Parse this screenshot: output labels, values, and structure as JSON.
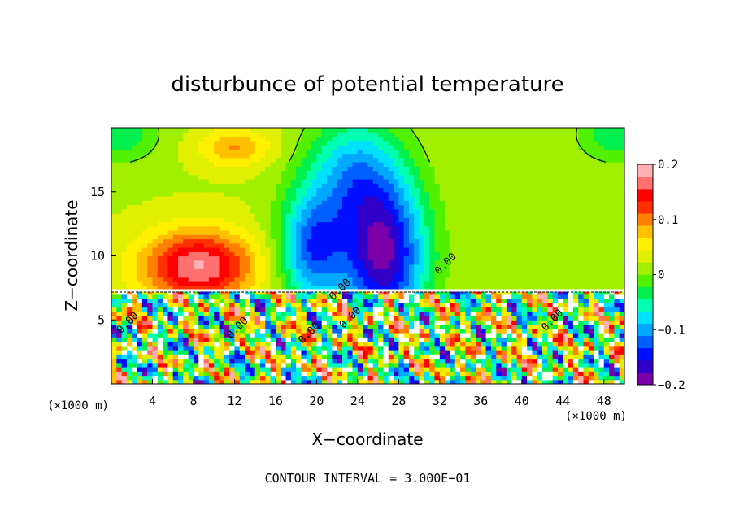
{
  "chart_data": {
    "type": "heatmap",
    "title": "disturbunce of potential temperature",
    "xlabel": "X−coordinate",
    "ylabel": "Z−coordinate",
    "x_unit_left": "(×1000 m)",
    "x_unit_right": "(×1000 m)",
    "footer": "CONTOUR INTERVAL = 3.000E−01",
    "xlim": [
      0,
      50
    ],
    "ylim": [
      0,
      20
    ],
    "x_ticks": [
      {
        "value": 4,
        "label": "4"
      },
      {
        "value": 8,
        "label": "8"
      },
      {
        "value": 12,
        "label": "12"
      },
      {
        "value": 16,
        "label": "16"
      },
      {
        "value": 20,
        "label": "20"
      },
      {
        "value": 24,
        "label": "24"
      },
      {
        "value": 28,
        "label": "28"
      },
      {
        "value": 32,
        "label": "32"
      },
      {
        "value": 36,
        "label": "36"
      },
      {
        "value": 40,
        "label": "40"
      },
      {
        "value": 44,
        "label": "44"
      },
      {
        "value": 48,
        "label": "48"
      }
    ],
    "y_ticks": [
      {
        "value": 5,
        "label": "5"
      },
      {
        "value": 10,
        "label": "10"
      },
      {
        "value": 15,
        "label": "15"
      }
    ],
    "colorbar": {
      "min": -0.2,
      "max": 0.2,
      "ticks": [
        {
          "value": 0.2,
          "label": "0.2"
        },
        {
          "value": 0.1,
          "label": "0.1"
        },
        {
          "value": 0,
          "label": "0"
        },
        {
          "value": -0.1,
          "label": "−0.1"
        },
        {
          "value": -0.2,
          "label": "−0.2"
        }
      ],
      "colors": [
        "#7b00a8",
        "#3000c8",
        "#0010ff",
        "#0060ff",
        "#00a8ff",
        "#00e0ff",
        "#00ffb0",
        "#00f050",
        "#50f000",
        "#a0f000",
        "#e0f000",
        "#fff000",
        "#ffc000",
        "#ff8000",
        "#ff3000",
        "#ff0000",
        "#ff7070",
        "#ffb0b0"
      ]
    },
    "contour_labels": [
      {
        "text": "0.00",
        "x": 22.5,
        "y": 7.2
      },
      {
        "text": "0.00",
        "x": 32.8,
        "y": 9.2
      },
      {
        "text": "0.00",
        "x": 12.5,
        "y": 4.2
      },
      {
        "text": "0.00",
        "x": 1.8,
        "y": 4.6
      },
      {
        "text": "0.00",
        "x": 19.5,
        "y": 3.8
      },
      {
        "text": "0.00",
        "x": 23.5,
        "y": 5.0
      },
      {
        "text": "0.00",
        "x": 43.2,
        "y": 4.8
      }
    ],
    "fields": {
      "upper": {
        "z_range": [
          7.3,
          20
        ],
        "background_value": 0.02,
        "features": [
          {
            "name": "warm-anomaly",
            "x": 8.5,
            "z": 9.2,
            "sx": 5.5,
            "sz": 2.8,
            "value": 0.16
          },
          {
            "name": "cool-core",
            "x": 26.5,
            "z": 10.0,
            "sx": 4.2,
            "sz": 6.0,
            "value": -0.2
          },
          {
            "name": "cool-left",
            "x": 19.5,
            "z": 10.5,
            "sx": 3.2,
            "sz": 4.5,
            "value": -0.14
          },
          {
            "name": "cool-column",
            "x": 23.5,
            "z": 16.5,
            "sx": 4.5,
            "sz": 4.5,
            "value": -0.1
          },
          {
            "name": "warm-top",
            "x": 12.0,
            "z": 18.5,
            "sx": 3.5,
            "sz": 1.5,
            "value": 0.07
          },
          {
            "name": "cool-top-left",
            "x": 0.5,
            "z": 19.5,
            "sx": 4.0,
            "sz": 2.2,
            "value": -0.06
          },
          {
            "name": "cool-top-right",
            "x": 49.5,
            "z": 19.5,
            "sx": 4.0,
            "sz": 2.2,
            "value": -0.06
          }
        ]
      },
      "lower": {
        "z_range": [
          0,
          7.3
        ],
        "description_free": true
      }
    }
  }
}
